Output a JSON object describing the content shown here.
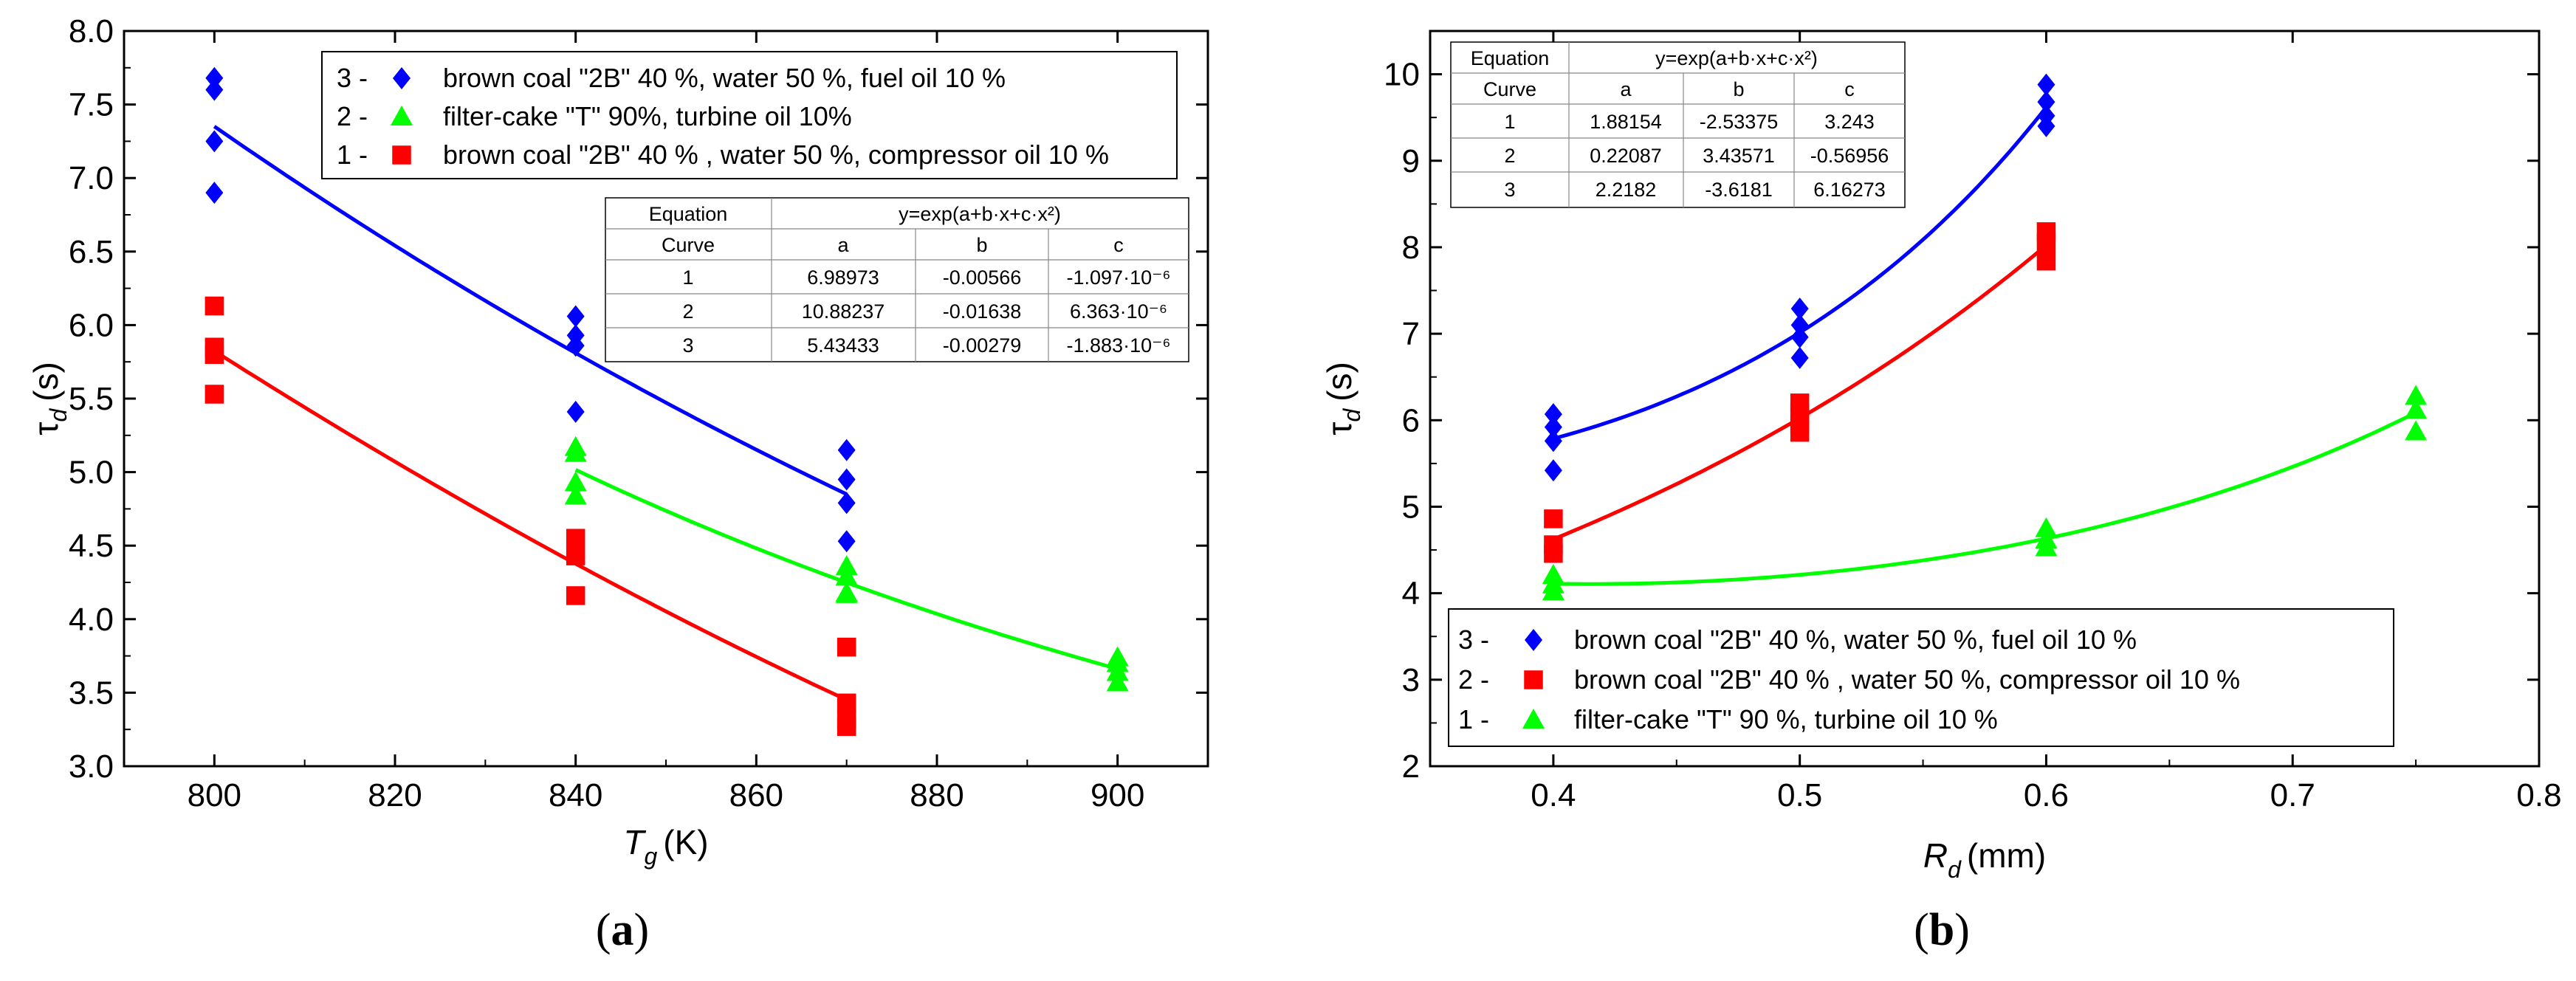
{
  "chart_data": [
    {
      "type": "scatter",
      "panel_label": "a",
      "xlabel": "T",
      "xlabel_sub": "g",
      "xlabel_unit": "(K)",
      "ylabel": "τ",
      "ylabel_sub": "d",
      "ylabel_unit": "(s)",
      "xlim": [
        790,
        910
      ],
      "ylim": [
        3.0,
        8.0
      ],
      "x_ticks": [
        "800",
        "820",
        "840",
        "860",
        "880",
        "900"
      ],
      "y_ticks": [
        "3.0",
        "3.5",
        "4.0",
        "4.5",
        "5.0",
        "5.5",
        "6.0",
        "6.5",
        "7.0",
        "7.5",
        "8.0"
      ],
      "x_tick_values": [
        800,
        820,
        840,
        860,
        880,
        900
      ],
      "y_tick_values": [
        3.0,
        3.5,
        4.0,
        4.5,
        5.0,
        5.5,
        6.0,
        6.5,
        7.0,
        7.5,
        8.0
      ],
      "legend": [
        {
          "num": "3 -",
          "marker": "diamond",
          "color": "#0000ff",
          "label": "brown coal \"2B\" 40 %, water 50 %, fuel oil 10 %"
        },
        {
          "num": "2 -",
          "marker": "triangle",
          "color": "#00ff00",
          "label": "filter-cake \"T\" 90%, turbine oil 10%"
        },
        {
          "num": "1 -",
          "marker": "square",
          "color": "#ff0000",
          "label": "brown coal \"2B\" 40 % , water 50 %, compressor oil 10 %"
        }
      ],
      "table": {
        "header1": [
          "Equation",
          "y=exp(a+b·x+c·x²)"
        ],
        "header2": [
          "Curve",
          "a",
          "b",
          "c"
        ],
        "rows": [
          [
            "1",
            "6.98973",
            "-0.00566",
            "-1.097·10⁻⁶"
          ],
          [
            "2",
            "10.88237",
            "-0.01638",
            "6.363·10⁻⁶"
          ],
          [
            "3",
            "5.43433",
            "-0.00279",
            "-1.883·10⁻⁶"
          ]
        ]
      },
      "series": [
        {
          "name": "3",
          "marker": "diamond",
          "color": "#0000ff",
          "x_range": [
            800,
            870
          ],
          "points": [
            [
              800,
              7.68
            ],
            [
              800,
              7.6
            ],
            [
              800,
              7.25
            ],
            [
              800,
              6.9
            ],
            [
              840,
              6.06
            ],
            [
              840,
              5.93
            ],
            [
              840,
              5.86
            ],
            [
              840,
              5.41
            ],
            [
              870,
              5.15
            ],
            [
              870,
              4.95
            ],
            [
              870,
              4.79
            ],
            [
              870,
              4.53
            ]
          ]
        },
        {
          "name": "2",
          "marker": "triangle",
          "color": "#00ff00",
          "x_range": [
            840,
            900
          ],
          "points": [
            [
              840,
              5.17
            ],
            [
              840,
              5.13
            ],
            [
              840,
              4.93
            ],
            [
              840,
              4.84
            ],
            [
              870,
              4.36
            ],
            [
              870,
              4.29
            ],
            [
              870,
              4.18
            ],
            [
              870,
              4.17
            ],
            [
              900,
              3.74
            ],
            [
              900,
              3.7
            ],
            [
              900,
              3.64
            ],
            [
              900,
              3.57
            ]
          ]
        },
        {
          "name": "1",
          "marker": "square",
          "color": "#ff0000",
          "x_range": [
            800,
            870
          ],
          "points": [
            [
              800,
              6.13
            ],
            [
              800,
              5.85
            ],
            [
              800,
              5.8
            ],
            [
              800,
              5.53
            ],
            [
              840,
              4.55
            ],
            [
              840,
              4.43
            ],
            [
              840,
              4.16
            ],
            [
              870,
              3.81
            ],
            [
              870,
              3.43
            ],
            [
              870,
              3.32
            ],
            [
              870,
              3.27
            ]
          ]
        }
      ]
    },
    {
      "type": "scatter",
      "panel_label": "b",
      "xlabel": "R",
      "xlabel_sub": "d",
      "xlabel_unit": "(mm)",
      "ylabel": "τ",
      "ylabel_sub": "d",
      "ylabel_unit": "(s)",
      "xlim": [
        0.35,
        0.8
      ],
      "ylim": [
        2,
        10.5
      ],
      "x_ticks": [
        "0.4",
        "0.5",
        "0.6",
        "0.7",
        "0.8"
      ],
      "y_ticks": [
        "2",
        "3",
        "4",
        "5",
        "6",
        "7",
        "8",
        "9",
        "10"
      ],
      "x_tick_values": [
        0.4,
        0.5,
        0.6,
        0.7,
        0.8
      ],
      "y_tick_values": [
        2,
        3,
        4,
        5,
        6,
        7,
        8,
        9,
        10
      ],
      "legend": [
        {
          "num": "3 -",
          "marker": "diamond",
          "color": "#0000ff",
          "label": "brown coal \"2B\" 40 %, water 50 %, fuel oil 10 %"
        },
        {
          "num": "2 -",
          "marker": "square",
          "color": "#ff0000",
          "label": "brown coal \"2B\" 40 % , water 50 %, compressor oil 10 %"
        },
        {
          "num": "1 -",
          "marker": "triangle",
          "color": "#00ff00",
          "label": "filter-cake \"T\" 90 %, turbine oil 10 %"
        }
      ],
      "table": {
        "header1": [
          "Equation",
          "y=exp(a+b·x+c·x²)"
        ],
        "header2": [
          "Curve",
          "a",
          "b",
          "c"
        ],
        "rows": [
          [
            "1",
            "1.88154",
            "-2.53375",
            "3.243"
          ],
          [
            "2",
            "0.22087",
            "3.43571",
            "-0.56956"
          ],
          [
            "3",
            "2.2182",
            "-3.6181",
            "6.16273"
          ]
        ]
      },
      "series": [
        {
          "name": "3",
          "marker": "diamond",
          "color": "#0000ff",
          "x_range": [
            0.4,
            0.6
          ],
          "points": [
            [
              0.4,
              6.07
            ],
            [
              0.4,
              5.92
            ],
            [
              0.4,
              5.76
            ],
            [
              0.4,
              5.42
            ],
            [
              0.5,
              7.29
            ],
            [
              0.5,
              7.1
            ],
            [
              0.5,
              6.96
            ],
            [
              0.5,
              6.72
            ],
            [
              0.6,
              9.88
            ],
            [
              0.6,
              9.68
            ],
            [
              0.6,
              9.52
            ],
            [
              0.6,
              9.4
            ]
          ]
        },
        {
          "name": "2",
          "marker": "square",
          "color": "#ff0000",
          "x_range": [
            0.4,
            0.6
          ],
          "points": [
            [
              0.4,
              4.86
            ],
            [
              0.4,
              4.56
            ],
            [
              0.4,
              4.46
            ],
            [
              0.5,
              6.2
            ],
            [
              0.5,
              6.08
            ],
            [
              0.5,
              5.96
            ],
            [
              0.5,
              5.86
            ],
            [
              0.6,
              8.18
            ],
            [
              0.6,
              8.05
            ],
            [
              0.6,
              7.84
            ]
          ]
        },
        {
          "name": "1",
          "marker": "triangle",
          "color": "#00ff00",
          "x_range": [
            0.4,
            0.75
          ],
          "points": [
            [
              0.4,
              4.21
            ],
            [
              0.4,
              4.1
            ],
            [
              0.4,
              4.02
            ],
            [
              0.6,
              4.75
            ],
            [
              0.6,
              4.62
            ],
            [
              0.6,
              4.53
            ],
            [
              0.75,
              6.28
            ],
            [
              0.75,
              6.12
            ],
            [
              0.75,
              5.87
            ]
          ]
        }
      ]
    }
  ]
}
